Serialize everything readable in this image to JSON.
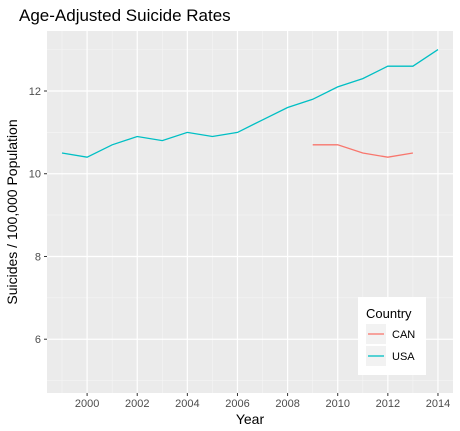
{
  "chart_data": {
    "type": "line",
    "title": "Age-Adjusted Suicide Rates",
    "xlabel": "Year",
    "ylabel": "Suicides / 100,000 Population",
    "xlim": [
      1998.4,
      2014.6
    ],
    "ylim": [
      4.7,
      13.45
    ],
    "x_ticks": [
      "2000",
      "2002",
      "2004",
      "2006",
      "2008",
      "2010",
      "2012",
      "2014"
    ],
    "y_ticks": [
      "6",
      "8",
      "10",
      "12"
    ],
    "grid": true,
    "legend": {
      "title": "Country",
      "placement": "bottom-right",
      "entries": [
        "CAN",
        "USA"
      ]
    },
    "series": [
      {
        "name": "CAN",
        "color": "#F8766D",
        "x": [
          2009,
          2010,
          2011,
          2012,
          2013
        ],
        "values": [
          10.7,
          10.7,
          10.5,
          10.4,
          10.5
        ]
      },
      {
        "name": "USA",
        "color": "#00BFC4",
        "x": [
          1999,
          2000,
          2001,
          2002,
          2003,
          2004,
          2005,
          2006,
          2007,
          2008,
          2009,
          2010,
          2011,
          2012,
          2013,
          2014
        ],
        "values": [
          10.5,
          10.4,
          10.7,
          10.9,
          10.8,
          11.0,
          10.9,
          11.0,
          11.3,
          11.6,
          11.8,
          12.1,
          12.3,
          12.6,
          12.6,
          13.0
        ]
      }
    ]
  }
}
